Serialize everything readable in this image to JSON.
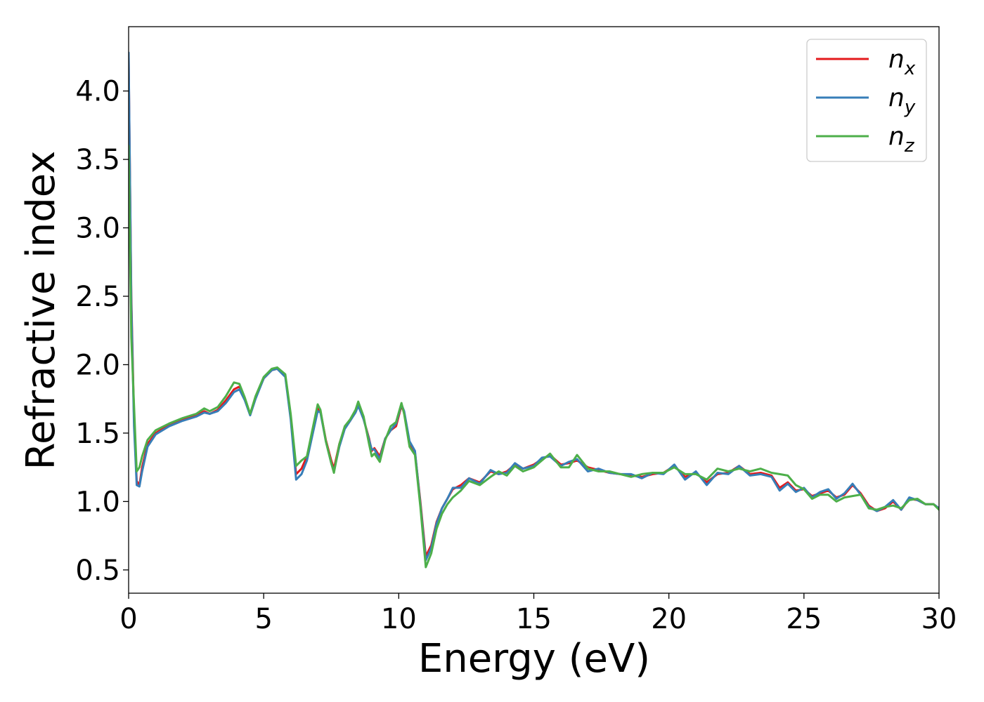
{
  "chart_data": {
    "type": "line",
    "xlabel": "Energy (eV)",
    "ylabel": "Refractive index",
    "xlim": [
      0,
      30
    ],
    "ylim": [
      0.33,
      4.47
    ],
    "xticks": [
      0,
      5,
      10,
      15,
      20,
      25,
      30
    ],
    "xtick_labels": [
      "0",
      "5",
      "10",
      "15",
      "20",
      "25",
      "30"
    ],
    "yticks": [
      0.5,
      1.0,
      1.5,
      2.0,
      2.5,
      3.0,
      3.5,
      4.0
    ],
    "ytick_labels": [
      "0.5",
      "1.0",
      "1.5",
      "2.0",
      "2.5",
      "3.0",
      "3.5",
      "4.0"
    ],
    "grid": false,
    "legend": "top-right",
    "series": [
      {
        "name": "n",
        "subscript": "x",
        "color": "#e41a1c",
        "x": [
          0.0,
          0.1,
          0.2,
          0.3,
          0.4,
          0.5,
          0.7,
          1.0,
          1.5,
          2.0,
          2.5,
          2.8,
          3.0,
          3.3,
          3.6,
          3.9,
          4.1,
          4.3,
          4.5,
          4.7,
          5.0,
          5.3,
          5.5,
          5.8,
          6.0,
          6.2,
          6.4,
          6.6,
          6.8,
          7.0,
          7.1,
          7.3,
          7.5,
          7.6,
          7.8,
          8.0,
          8.2,
          8.4,
          8.5,
          8.7,
          8.9,
          9.0,
          9.1,
          9.3,
          9.5,
          9.7,
          9.9,
          10.1,
          10.2,
          10.4,
          10.6,
          10.8,
          11.0,
          11.2,
          11.4,
          11.6,
          11.8,
          12.0,
          12.3,
          12.6,
          13.0,
          13.4,
          13.7,
          14.0,
          14.3,
          14.6,
          15.0,
          15.3,
          15.6,
          16.0,
          16.3,
          16.6,
          17.0,
          17.4,
          17.8,
          18.2,
          18.6,
          19.0,
          19.4,
          19.8,
          20.2,
          20.6,
          21.0,
          21.4,
          21.8,
          22.2,
          22.6,
          23.0,
          23.4,
          23.8,
          24.1,
          24.4,
          24.7,
          25.0,
          25.3,
          25.6,
          25.9,
          26.2,
          26.5,
          26.8,
          27.1,
          27.4,
          27.7,
          28.0,
          28.3,
          28.6,
          28.9,
          29.2,
          29.5,
          29.8,
          30.0
        ],
        "y": [
          4.25,
          2.5,
          1.6,
          1.15,
          1.12,
          1.25,
          1.42,
          1.5,
          1.56,
          1.6,
          1.63,
          1.66,
          1.64,
          1.67,
          1.74,
          1.82,
          1.84,
          1.75,
          1.64,
          1.76,
          1.9,
          1.96,
          1.97,
          1.92,
          1.62,
          1.2,
          1.24,
          1.33,
          1.5,
          1.68,
          1.66,
          1.45,
          1.3,
          1.24,
          1.42,
          1.54,
          1.59,
          1.66,
          1.71,
          1.6,
          1.46,
          1.37,
          1.39,
          1.33,
          1.46,
          1.52,
          1.55,
          1.7,
          1.65,
          1.42,
          1.36,
          1.0,
          0.6,
          0.68,
          0.85,
          0.95,
          1.02,
          1.09,
          1.12,
          1.17,
          1.14,
          1.22,
          1.2,
          1.22,
          1.27,
          1.24,
          1.27,
          1.31,
          1.34,
          1.27,
          1.28,
          1.3,
          1.25,
          1.23,
          1.21,
          1.2,
          1.19,
          1.18,
          1.2,
          1.21,
          1.26,
          1.18,
          1.21,
          1.14,
          1.2,
          1.21,
          1.26,
          1.2,
          1.21,
          1.19,
          1.1,
          1.14,
          1.08,
          1.09,
          1.04,
          1.06,
          1.08,
          1.03,
          1.05,
          1.12,
          1.06,
          0.97,
          0.93,
          0.95,
          1.0,
          0.94,
          1.02,
          1.01,
          0.98,
          0.98,
          0.95
        ]
      },
      {
        "name": "n",
        "subscript": "y",
        "color": "#377eb8",
        "x": [
          0.0,
          0.1,
          0.2,
          0.3,
          0.4,
          0.5,
          0.7,
          1.0,
          1.5,
          2.0,
          2.5,
          2.8,
          3.0,
          3.3,
          3.6,
          3.9,
          4.1,
          4.3,
          4.5,
          4.7,
          5.0,
          5.3,
          5.5,
          5.8,
          6.0,
          6.2,
          6.4,
          6.6,
          6.8,
          7.0,
          7.1,
          7.3,
          7.5,
          7.6,
          7.8,
          8.0,
          8.2,
          8.4,
          8.5,
          8.7,
          8.9,
          9.0,
          9.1,
          9.3,
          9.5,
          9.7,
          9.9,
          10.1,
          10.2,
          10.4,
          10.6,
          10.8,
          11.0,
          11.2,
          11.4,
          11.6,
          11.8,
          12.0,
          12.3,
          12.6,
          13.0,
          13.4,
          13.7,
          14.0,
          14.3,
          14.6,
          15.0,
          15.3,
          15.6,
          16.0,
          16.3,
          16.6,
          17.0,
          17.4,
          17.8,
          18.2,
          18.6,
          19.0,
          19.4,
          19.8,
          20.2,
          20.6,
          21.0,
          21.4,
          21.8,
          22.2,
          22.6,
          23.0,
          23.4,
          23.8,
          24.1,
          24.4,
          24.7,
          25.0,
          25.3,
          25.6,
          25.9,
          26.2,
          26.5,
          26.8,
          27.1,
          27.4,
          27.7,
          28.0,
          28.3,
          28.6,
          28.9,
          29.2,
          29.5,
          29.8,
          30.0
        ],
        "y": [
          4.28,
          2.45,
          1.55,
          1.12,
          1.11,
          1.22,
          1.4,
          1.49,
          1.55,
          1.59,
          1.62,
          1.65,
          1.64,
          1.66,
          1.72,
          1.8,
          1.82,
          1.74,
          1.63,
          1.75,
          1.9,
          1.96,
          1.97,
          1.91,
          1.6,
          1.16,
          1.2,
          1.3,
          1.48,
          1.66,
          1.65,
          1.44,
          1.28,
          1.22,
          1.4,
          1.53,
          1.59,
          1.65,
          1.7,
          1.6,
          1.45,
          1.38,
          1.38,
          1.31,
          1.46,
          1.52,
          1.57,
          1.71,
          1.66,
          1.44,
          1.37,
          0.98,
          0.57,
          0.66,
          0.84,
          0.95,
          1.02,
          1.1,
          1.1,
          1.17,
          1.13,
          1.23,
          1.2,
          1.21,
          1.28,
          1.24,
          1.26,
          1.32,
          1.33,
          1.26,
          1.29,
          1.31,
          1.22,
          1.24,
          1.21,
          1.2,
          1.2,
          1.17,
          1.21,
          1.2,
          1.27,
          1.16,
          1.22,
          1.12,
          1.21,
          1.2,
          1.26,
          1.19,
          1.2,
          1.18,
          1.08,
          1.13,
          1.07,
          1.1,
          1.03,
          1.07,
          1.09,
          1.02,
          1.06,
          1.13,
          1.05,
          0.96,
          0.93,
          0.96,
          1.01,
          0.94,
          1.03,
          1.01,
          0.98,
          0.98,
          0.95
        ]
      },
      {
        "name": "n",
        "subscript": "z",
        "color": "#4daf4a",
        "x": [
          0.0,
          0.1,
          0.2,
          0.3,
          0.4,
          0.5,
          0.7,
          1.0,
          1.5,
          2.0,
          2.5,
          2.8,
          3.0,
          3.3,
          3.6,
          3.9,
          4.1,
          4.3,
          4.5,
          4.7,
          5.0,
          5.3,
          5.5,
          5.8,
          6.0,
          6.2,
          6.4,
          6.6,
          6.8,
          7.0,
          7.1,
          7.3,
          7.5,
          7.6,
          7.8,
          8.0,
          8.2,
          8.4,
          8.5,
          8.7,
          8.9,
          9.0,
          9.1,
          9.3,
          9.5,
          9.7,
          9.9,
          10.1,
          10.2,
          10.4,
          10.6,
          10.8,
          11.0,
          11.2,
          11.4,
          11.6,
          11.8,
          12.0,
          12.3,
          12.6,
          13.0,
          13.4,
          13.7,
          14.0,
          14.3,
          14.6,
          15.0,
          15.3,
          15.6,
          16.0,
          16.3,
          16.6,
          17.0,
          17.4,
          17.8,
          18.2,
          18.6,
          19.0,
          19.4,
          19.8,
          20.2,
          20.6,
          21.0,
          21.4,
          21.8,
          22.2,
          22.6,
          23.0,
          23.4,
          23.8,
          24.1,
          24.4,
          24.7,
          25.0,
          25.3,
          25.6,
          25.9,
          26.2,
          26.5,
          26.8,
          27.1,
          27.4,
          27.7,
          28.0,
          28.3,
          28.6,
          28.9,
          29.2,
          29.5,
          29.8,
          30.0
        ],
        "y": [
          3.6,
          2.2,
          1.7,
          1.22,
          1.25,
          1.33,
          1.45,
          1.52,
          1.57,
          1.61,
          1.64,
          1.68,
          1.66,
          1.69,
          1.77,
          1.87,
          1.86,
          1.76,
          1.64,
          1.77,
          1.91,
          1.97,
          1.98,
          1.93,
          1.64,
          1.26,
          1.3,
          1.33,
          1.52,
          1.71,
          1.67,
          1.44,
          1.28,
          1.21,
          1.42,
          1.55,
          1.6,
          1.67,
          1.73,
          1.62,
          1.42,
          1.33,
          1.35,
          1.29,
          1.45,
          1.55,
          1.58,
          1.72,
          1.64,
          1.4,
          1.34,
          0.96,
          0.52,
          0.62,
          0.8,
          0.91,
          0.98,
          1.03,
          1.08,
          1.15,
          1.12,
          1.18,
          1.22,
          1.19,
          1.26,
          1.22,
          1.25,
          1.3,
          1.35,
          1.25,
          1.25,
          1.34,
          1.24,
          1.22,
          1.22,
          1.2,
          1.18,
          1.2,
          1.21,
          1.21,
          1.25,
          1.2,
          1.2,
          1.16,
          1.24,
          1.22,
          1.24,
          1.22,
          1.24,
          1.21,
          1.2,
          1.19,
          1.12,
          1.09,
          1.02,
          1.05,
          1.05,
          1.0,
          1.03,
          1.04,
          1.05,
          0.95,
          0.94,
          0.96,
          0.97,
          0.95,
          1.01,
          1.02,
          0.98,
          0.98,
          0.94
        ]
      }
    ]
  }
}
